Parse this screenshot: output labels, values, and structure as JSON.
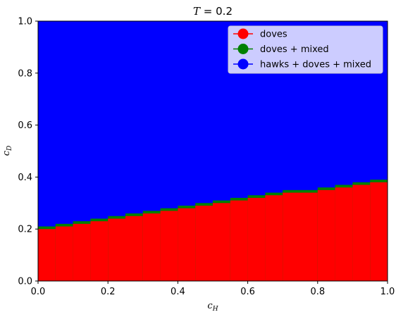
{
  "chart_data": {
    "type": "heatmap",
    "title_var": "T",
    "title_value": "= 0.2",
    "xlabel_main": "c",
    "xlabel_sub": "H",
    "ylabel_main": "c",
    "ylabel_sub": "D",
    "xlim": [
      0,
      1
    ],
    "ylim": [
      0,
      1
    ],
    "xticks": [
      "0.0",
      "0.2",
      "0.4",
      "0.6",
      "0.8",
      "1.0"
    ],
    "yticks": [
      "0.0",
      "0.2",
      "0.4",
      "0.6",
      "0.8",
      "1.0"
    ],
    "grid": false,
    "legend_position": "top-right",
    "background_region": "hawks + doves + mixed",
    "boundary_steps": [
      {
        "x0": 0.0,
        "x1": 0.05,
        "red_top": 0.2
      },
      {
        "x0": 0.05,
        "x1": 0.1,
        "red_top": 0.21
      },
      {
        "x0": 0.1,
        "x1": 0.15,
        "red_top": 0.22
      },
      {
        "x0": 0.15,
        "x1": 0.2,
        "red_top": 0.23
      },
      {
        "x0": 0.2,
        "x1": 0.25,
        "red_top": 0.24
      },
      {
        "x0": 0.25,
        "x1": 0.3,
        "red_top": 0.25
      },
      {
        "x0": 0.3,
        "x1": 0.35,
        "red_top": 0.26
      },
      {
        "x0": 0.35,
        "x1": 0.4,
        "red_top": 0.27
      },
      {
        "x0": 0.4,
        "x1": 0.45,
        "red_top": 0.28
      },
      {
        "x0": 0.45,
        "x1": 0.5,
        "red_top": 0.29
      },
      {
        "x0": 0.5,
        "x1": 0.55,
        "red_top": 0.3
      },
      {
        "x0": 0.55,
        "x1": 0.6,
        "red_top": 0.31
      },
      {
        "x0": 0.6,
        "x1": 0.65,
        "red_top": 0.32
      },
      {
        "x0": 0.65,
        "x1": 0.7,
        "red_top": 0.33
      },
      {
        "x0": 0.7,
        "x1": 0.75,
        "red_top": 0.34
      },
      {
        "x0": 0.75,
        "x1": 0.8,
        "red_top": 0.34
      },
      {
        "x0": 0.8,
        "x1": 0.85,
        "red_top": 0.35
      },
      {
        "x0": 0.85,
        "x1": 0.9,
        "red_top": 0.36
      },
      {
        "x0": 0.9,
        "x1": 0.95,
        "red_top": 0.37
      },
      {
        "x0": 0.95,
        "x1": 1.0,
        "red_top": 0.38
      }
    ],
    "mixed_band_thickness": 0.01,
    "series": [
      {
        "name": "doves",
        "color": "#ff0000"
      },
      {
        "name": "doves + mixed",
        "color": "#008000"
      },
      {
        "name": "hawks + doves + mixed",
        "color": "#0000ff"
      }
    ]
  }
}
